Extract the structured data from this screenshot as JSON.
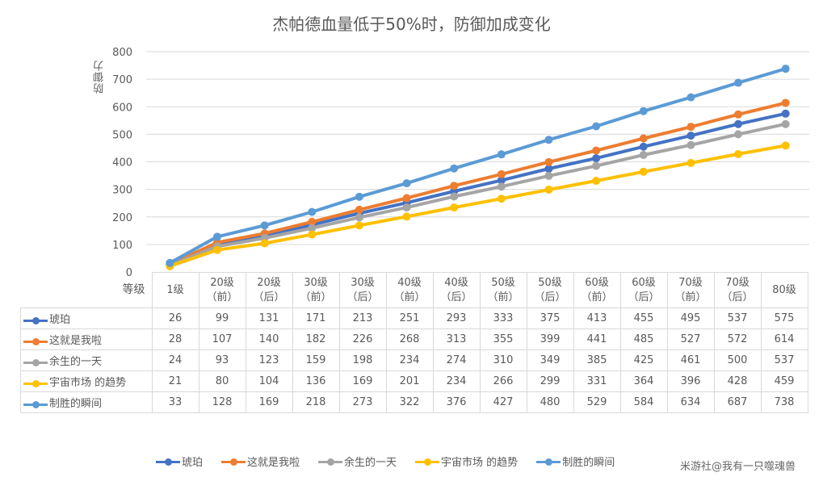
{
  "chart_data": {
    "type": "line",
    "title": "杰帕德血量低于50%时，防御加成变化",
    "xlabel": "等级",
    "ylabel": "防御力",
    "ylim": [
      0,
      800
    ],
    "yticks": [
      0,
      100,
      200,
      300,
      400,
      500,
      600,
      700,
      800
    ],
    "grid": true,
    "legend_position": "bottom",
    "categories": [
      [
        "1级"
      ],
      [
        "20级",
        "（前）"
      ],
      [
        "20级",
        "（后）"
      ],
      [
        "30级",
        "（前）"
      ],
      [
        "30级",
        "（后）"
      ],
      [
        "40级",
        "（前）"
      ],
      [
        "40级",
        "（后）"
      ],
      [
        "50级",
        "（前）"
      ],
      [
        "50级",
        "（后）"
      ],
      [
        "60级",
        "（前）"
      ],
      [
        "60级",
        "（后）"
      ],
      [
        "70级",
        "（前）"
      ],
      [
        "70级",
        "（后）"
      ],
      [
        "80级"
      ]
    ],
    "series": [
      {
        "name": "琥珀",
        "color": "#4472C4",
        "values": [
          26,
          99,
          131,
          171,
          213,
          251,
          293,
          333,
          375,
          413,
          455,
          495,
          537,
          575
        ]
      },
      {
        "name": "这就是我啦",
        "color": "#ED7D31",
        "values": [
          28,
          107,
          140,
          182,
          226,
          268,
          313,
          355,
          399,
          441,
          485,
          527,
          572,
          614
        ]
      },
      {
        "name": "余生的一天",
        "color": "#A5A5A5",
        "values": [
          24,
          93,
          123,
          159,
          198,
          234,
          274,
          310,
          349,
          385,
          425,
          461,
          500,
          537
        ]
      },
      {
        "name": "宇宙市场 的趋势",
        "color": "#FFC000",
        "values": [
          21,
          80,
          104,
          136,
          169,
          201,
          234,
          266,
          299,
          331,
          364,
          396,
          428,
          459
        ]
      },
      {
        "name": "制胜的瞬间",
        "color": "#5B9BD5",
        "values": [
          33,
          128,
          169,
          218,
          273,
          322,
          376,
          427,
          480,
          529,
          584,
          634,
          687,
          738
        ]
      }
    ]
  },
  "watermark": "米游社@我有一只噬魂兽"
}
